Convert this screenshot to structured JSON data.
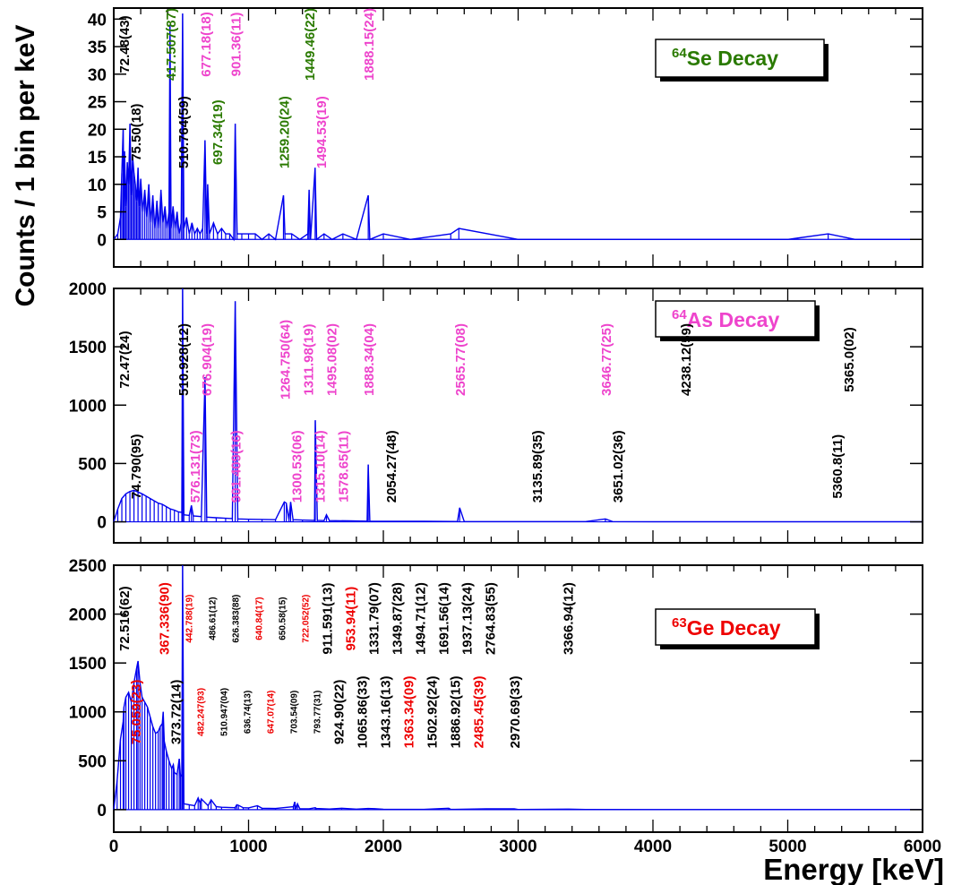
{
  "figure": {
    "ylabel": "Counts / 1 bin per keV",
    "xlabel": "Energy [keV]"
  },
  "colors": {
    "spectrum": "#0000ee",
    "black": "#000000",
    "green": "#2a7a00",
    "magenta": "#ee44cc",
    "red": "#ee0000"
  },
  "chart_data": [
    {
      "type": "line",
      "panel": "64Se",
      "legend": {
        "sup": "64",
        "text": "Se Decay",
        "color": "green"
      },
      "xlim": [
        0,
        6000
      ],
      "ylim": [
        -5,
        42
      ],
      "yticks": [
        0,
        5,
        10,
        15,
        20,
        25,
        30,
        35,
        40
      ],
      "ytick_labels": [
        "0",
        "5",
        "10",
        "15",
        "20",
        "25",
        "30",
        "35",
        "40"
      ],
      "series": [
        {
          "x": [
            0,
            30,
            50,
            60,
            70,
            75,
            80,
            90,
            100,
            110,
            120,
            130,
            140,
            150,
            160,
            170,
            180,
            190,
            200,
            215,
            230,
            245,
            260,
            275,
            290,
            305,
            320,
            335,
            350,
            365,
            380,
            395,
            410,
            417,
            425,
            440,
            455,
            470,
            485,
            500,
            511,
            520,
            540,
            560,
            580,
            600,
            620,
            640,
            660,
            677,
            690,
            697,
            710,
            740,
            770,
            800,
            830,
            860,
            890,
            901,
            915,
            950,
            1000,
            1050,
            1100,
            1150,
            1200,
            1259,
            1270,
            1320,
            1380,
            1440,
            1449,
            1460,
            1494,
            1505,
            1560,
            1620,
            1700,
            1800,
            1888,
            1900,
            2000,
            2200,
            2500,
            2560,
            3000,
            3500,
            4000,
            4500,
            5000,
            5300,
            5500,
            5800,
            6000
          ],
          "y": [
            0,
            1,
            4,
            12,
            20,
            9,
            16,
            6,
            14,
            10,
            21,
            8,
            15,
            12,
            10,
            7,
            13,
            6,
            11,
            5,
            9,
            4,
            10,
            3,
            8,
            2,
            7,
            2,
            9,
            3,
            6,
            2,
            5,
            39,
            2,
            6,
            2,
            5,
            1,
            3,
            41,
            2,
            4,
            1,
            3,
            1,
            2,
            1,
            2,
            18,
            1,
            10,
            1,
            3,
            1,
            2,
            1,
            1,
            0,
            21,
            1,
            1,
            1,
            1,
            0,
            1,
            0,
            8,
            1,
            1,
            0,
            1,
            9,
            0,
            13,
            0,
            1,
            0,
            1,
            0,
            8,
            0,
            1,
            0,
            1,
            2,
            0,
            0,
            0,
            0,
            0,
            1,
            0,
            0,
            0
          ]
        }
      ],
      "annotations": [
        {
          "text": "72.48(43)",
          "x": 72.48,
          "color": "black"
        },
        {
          "text": "75.50(18)",
          "x": 75.5,
          "color": "black"
        },
        {
          "text": "417.507(87)",
          "x": 417.507,
          "color": "green"
        },
        {
          "text": "510.764(59)",
          "x": 510.764,
          "color": "black"
        },
        {
          "text": "677.18(18)",
          "x": 677.18,
          "color": "magenta"
        },
        {
          "text": "697.34(19)",
          "x": 697.34,
          "color": "green"
        },
        {
          "text": "901.36(11)",
          "x": 901.36,
          "color": "magenta"
        },
        {
          "text": "1259.20(24)",
          "x": 1259.2,
          "color": "green"
        },
        {
          "text": "1449.46(22)",
          "x": 1449.46,
          "color": "green"
        },
        {
          "text": "1494.53(19)",
          "x": 1494.53,
          "color": "magenta"
        },
        {
          "text": "1888.15(24)",
          "x": 1888.15,
          "color": "magenta"
        }
      ]
    },
    {
      "type": "line",
      "panel": "64As",
      "legend": {
        "sup": "64",
        "text": "As Decay",
        "color": "magenta"
      },
      "xlim": [
        0,
        6000
      ],
      "ylim": [
        -180,
        2000
      ],
      "yticks": [
        0,
        500,
        1000,
        1500,
        2000
      ],
      "ytick_labels": [
        "0",
        "500",
        "1000",
        "1500",
        "2000"
      ],
      "series": [
        {
          "x": [
            0,
            30,
            60,
            90,
            120,
            150,
            180,
            210,
            240,
            270,
            300,
            330,
            360,
            390,
            420,
            450,
            480,
            505,
            511,
            520,
            560,
            576,
            590,
            650,
            677,
            690,
            760,
            830,
            880,
            901,
            920,
            1000,
            1100,
            1200,
            1265,
            1280,
            1300,
            1312,
            1330,
            1400,
            1490,
            1495,
            1510,
            1560,
            1578,
            1600,
            1750,
            1880,
            1888,
            1900,
            2000,
            2300,
            2550,
            2566,
            2600,
            3000,
            3500,
            3647,
            3700,
            4000,
            4500,
            5000,
            5500,
            6000
          ],
          "y": [
            0,
            110,
            200,
            240,
            260,
            270,
            255,
            240,
            220,
            200,
            180,
            160,
            150,
            130,
            110,
            100,
            85,
            80,
            2000,
            60,
            55,
            140,
            50,
            45,
            1240,
            40,
            35,
            30,
            28,
            1890,
            25,
            22,
            20,
            18,
            170,
            160,
            20,
            170,
            18,
            15,
            12,
            870,
            12,
            10,
            60,
            10,
            8,
            6,
            490,
            6,
            5,
            4,
            3,
            120,
            3,
            2,
            2,
            25,
            2,
            1,
            1,
            1,
            1,
            1
          ]
        }
      ],
      "annotations": [
        {
          "text": "72.47(24)",
          "x": 72.47,
          "color": "black"
        },
        {
          "text": "74.790(95)",
          "x": 74.79,
          "color": "black"
        },
        {
          "text": "510.928(12)",
          "x": 510.928,
          "color": "black"
        },
        {
          "text": "576.131(73)",
          "x": 576.131,
          "color": "magenta"
        },
        {
          "text": "676.904(19)",
          "x": 676.904,
          "color": "magenta"
        },
        {
          "text": "901.409(16)",
          "x": 901.409,
          "color": "magenta"
        },
        {
          "text": "1264.750(64)",
          "x": 1264.75,
          "color": "magenta"
        },
        {
          "text": "1300.53(06)",
          "x": 1300.53,
          "color": "magenta"
        },
        {
          "text": "1311.98(19)",
          "x": 1311.98,
          "color": "magenta"
        },
        {
          "text": "1315.10(14)",
          "x": 1315.1,
          "color": "magenta"
        },
        {
          "text": "1495.08(02)",
          "x": 1495.08,
          "color": "magenta"
        },
        {
          "text": "1578.65(11)",
          "x": 1578.65,
          "color": "magenta"
        },
        {
          "text": "1888.34(04)",
          "x": 1888.34,
          "color": "magenta"
        },
        {
          "text": "2054.27(48)",
          "x": 2054.27,
          "color": "black"
        },
        {
          "text": "2565.77(08)",
          "x": 2565.77,
          "color": "magenta"
        },
        {
          "text": "3135.89(35)",
          "x": 3135.89,
          "color": "black"
        },
        {
          "text": "3646.77(25)",
          "x": 3646.77,
          "color": "magenta"
        },
        {
          "text": "3651.02(36)",
          "x": 3651.02,
          "color": "black"
        },
        {
          "text": "4238.12(59)",
          "x": 4238.12,
          "color": "black"
        },
        {
          "text": "5360.8(11)",
          "x": 5360.8,
          "color": "black"
        },
        {
          "text": "5365.0(02)",
          "x": 5365.0,
          "color": "black"
        }
      ]
    },
    {
      "type": "line",
      "panel": "63Ge",
      "legend": {
        "sup": "63",
        "text": "Ge Decay",
        "color": "red"
      },
      "xlim": [
        0,
        6000
      ],
      "ylim": [
        -230,
        2500
      ],
      "yticks": [
        0,
        500,
        1000,
        1500,
        2000,
        2500
      ],
      "ytick_labels": [
        "0",
        "500",
        "1000",
        "1500",
        "2000",
        "2500"
      ],
      "series": [
        {
          "x": [
            0,
            25,
            50,
            70,
            73,
            76,
            90,
            110,
            130,
            150,
            170,
            180,
            195,
            210,
            230,
            250,
            270,
            290,
            310,
            330,
            345,
            360,
            367,
            375,
            390,
            410,
            430,
            442,
            450,
            470,
            486,
            495,
            505,
            511,
            520,
            560,
            600,
            626,
            640,
            650,
            700,
            722,
            760,
            800,
            900,
            912,
            925,
            960,
            1000,
            1066,
            1100,
            1200,
            1332,
            1343,
            1350,
            1363,
            1380,
            1450,
            1495,
            1503,
            1600,
            1691,
            1800,
            1887,
            1937,
            2000,
            2300,
            2485,
            2500,
            2765,
            2971,
            3000,
            3367,
            3500,
            4000,
            4500,
            5000,
            5500,
            6000
          ],
          "y": [
            0,
            300,
            720,
            900,
            1000,
            1050,
            1150,
            1200,
            1100,
            1300,
            1450,
            1520,
            1300,
            1150,
            1100,
            1050,
            950,
            850,
            780,
            800,
            850,
            880,
            1000,
            700,
            600,
            500,
            420,
            460,
            380,
            360,
            520,
            340,
            360,
            2500,
            60,
            50,
            40,
            120,
            70,
            110,
            40,
            100,
            30,
            25,
            20,
            50,
            45,
            20,
            18,
            40,
            15,
            12,
            30,
            80,
            12,
            60,
            10,
            8,
            20,
            12,
            6,
            15,
            5,
            12,
            10,
            4,
            3,
            15,
            3,
            8,
            8,
            2,
            5,
            2,
            1,
            1,
            1,
            1,
            1
          ]
        }
      ],
      "annotations": [
        {
          "text": "72.516(62)",
          "x": 72.516,
          "color": "black"
        },
        {
          "text": "75.059(23)",
          "x": 75.059,
          "color": "red"
        },
        {
          "text": "367.336(90)",
          "x": 367.336,
          "color": "red"
        },
        {
          "text": "373.72(14)",
          "x": 373.72,
          "color": "black"
        },
        {
          "text": "442.788(19)",
          "x": 442.788,
          "color": "red"
        },
        {
          "text": "482.247(93)",
          "x": 482.247,
          "color": "red"
        },
        {
          "text": "486.61(12)",
          "x": 486.61,
          "color": "black"
        },
        {
          "text": "510.947(04)",
          "x": 510.947,
          "color": "black"
        },
        {
          "text": "626.383(88)",
          "x": 626.383,
          "color": "black"
        },
        {
          "text": "636.74(13)",
          "x": 636.74,
          "color": "black"
        },
        {
          "text": "640.84(17)",
          "x": 640.84,
          "color": "red"
        },
        {
          "text": "647.07(14)",
          "x": 647.07,
          "color": "red"
        },
        {
          "text": "650.58(15)",
          "x": 650.58,
          "color": "black"
        },
        {
          "text": "703.54(09)",
          "x": 703.54,
          "color": "black"
        },
        {
          "text": "722.052(52)",
          "x": 722.052,
          "color": "red"
        },
        {
          "text": "793.77(31)",
          "x": 793.77,
          "color": "black"
        },
        {
          "text": "911.591(13)",
          "x": 911.591,
          "color": "black"
        },
        {
          "text": "924.90(22)",
          "x": 924.9,
          "color": "black"
        },
        {
          "text": "953.94(11)",
          "x": 953.94,
          "color": "red"
        },
        {
          "text": "1065.86(33)",
          "x": 1065.86,
          "color": "black"
        },
        {
          "text": "1331.79(07)",
          "x": 1331.79,
          "color": "black"
        },
        {
          "text": "1343.16(13)",
          "x": 1343.16,
          "color": "black"
        },
        {
          "text": "1349.87(28)",
          "x": 1349.87,
          "color": "black"
        },
        {
          "text": "1363.34(09)",
          "x": 1363.34,
          "color": "red"
        },
        {
          "text": "1494.71(12)",
          "x": 1494.71,
          "color": "black"
        },
        {
          "text": "1502.92(24)",
          "x": 1502.92,
          "color": "black"
        },
        {
          "text": "1691.56(14)",
          "x": 1691.56,
          "color": "black"
        },
        {
          "text": "1886.92(15)",
          "x": 1886.92,
          "color": "black"
        },
        {
          "text": "1937.13(24)",
          "x": 1937.13,
          "color": "black"
        },
        {
          "text": "2485.45(39)",
          "x": 2485.45,
          "color": "red"
        },
        {
          "text": "2764.83(55)",
          "x": 2764.83,
          "color": "black"
        },
        {
          "text": "2970.69(33)",
          "x": 2970.69,
          "color": "black"
        },
        {
          "text": "3366.94(12)",
          "x": 3366.94,
          "color": "black"
        }
      ]
    }
  ],
  "xticks": [
    0,
    1000,
    2000,
    3000,
    4000,
    5000,
    6000
  ],
  "xtick_labels": [
    "0",
    "1000",
    "2000",
    "3000",
    "4000",
    "5000",
    "6000"
  ]
}
